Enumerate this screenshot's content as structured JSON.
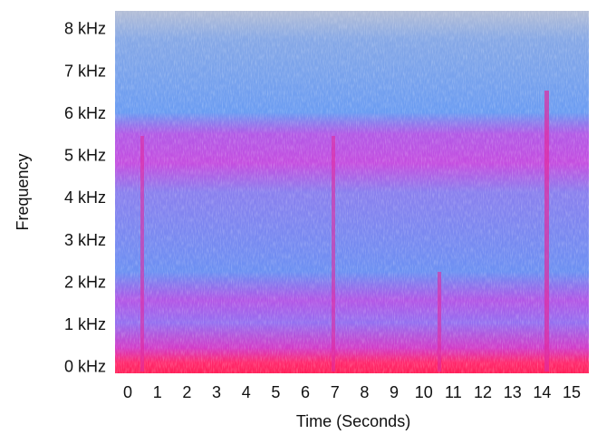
{
  "chart_data": {
    "type": "spectrogram",
    "x_label": "Time (Seconds)",
    "y_label": "Frequency",
    "xlim": [
      -0.43,
      15.58
    ],
    "xticks": [
      0,
      1,
      2,
      3,
      4,
      5,
      6,
      7,
      8,
      9,
      10,
      11,
      12,
      13,
      14,
      15
    ],
    "ylim": [
      -0.13,
      8.45
    ],
    "yticks": [
      {
        "value": 0,
        "label": "0 kHz"
      },
      {
        "value": 1,
        "label": "1 kHz"
      },
      {
        "value": 2,
        "label": "2 kHz"
      },
      {
        "value": 3,
        "label": "3 kHz"
      },
      {
        "value": 4,
        "label": "4 kHz"
      },
      {
        "value": 5,
        "label": "5 kHz"
      },
      {
        "value": 6,
        "label": "6 kHz"
      },
      {
        "value": 7,
        "label": "7 kHz"
      },
      {
        "value": 8,
        "label": "8 kHz"
      }
    ]
  }
}
